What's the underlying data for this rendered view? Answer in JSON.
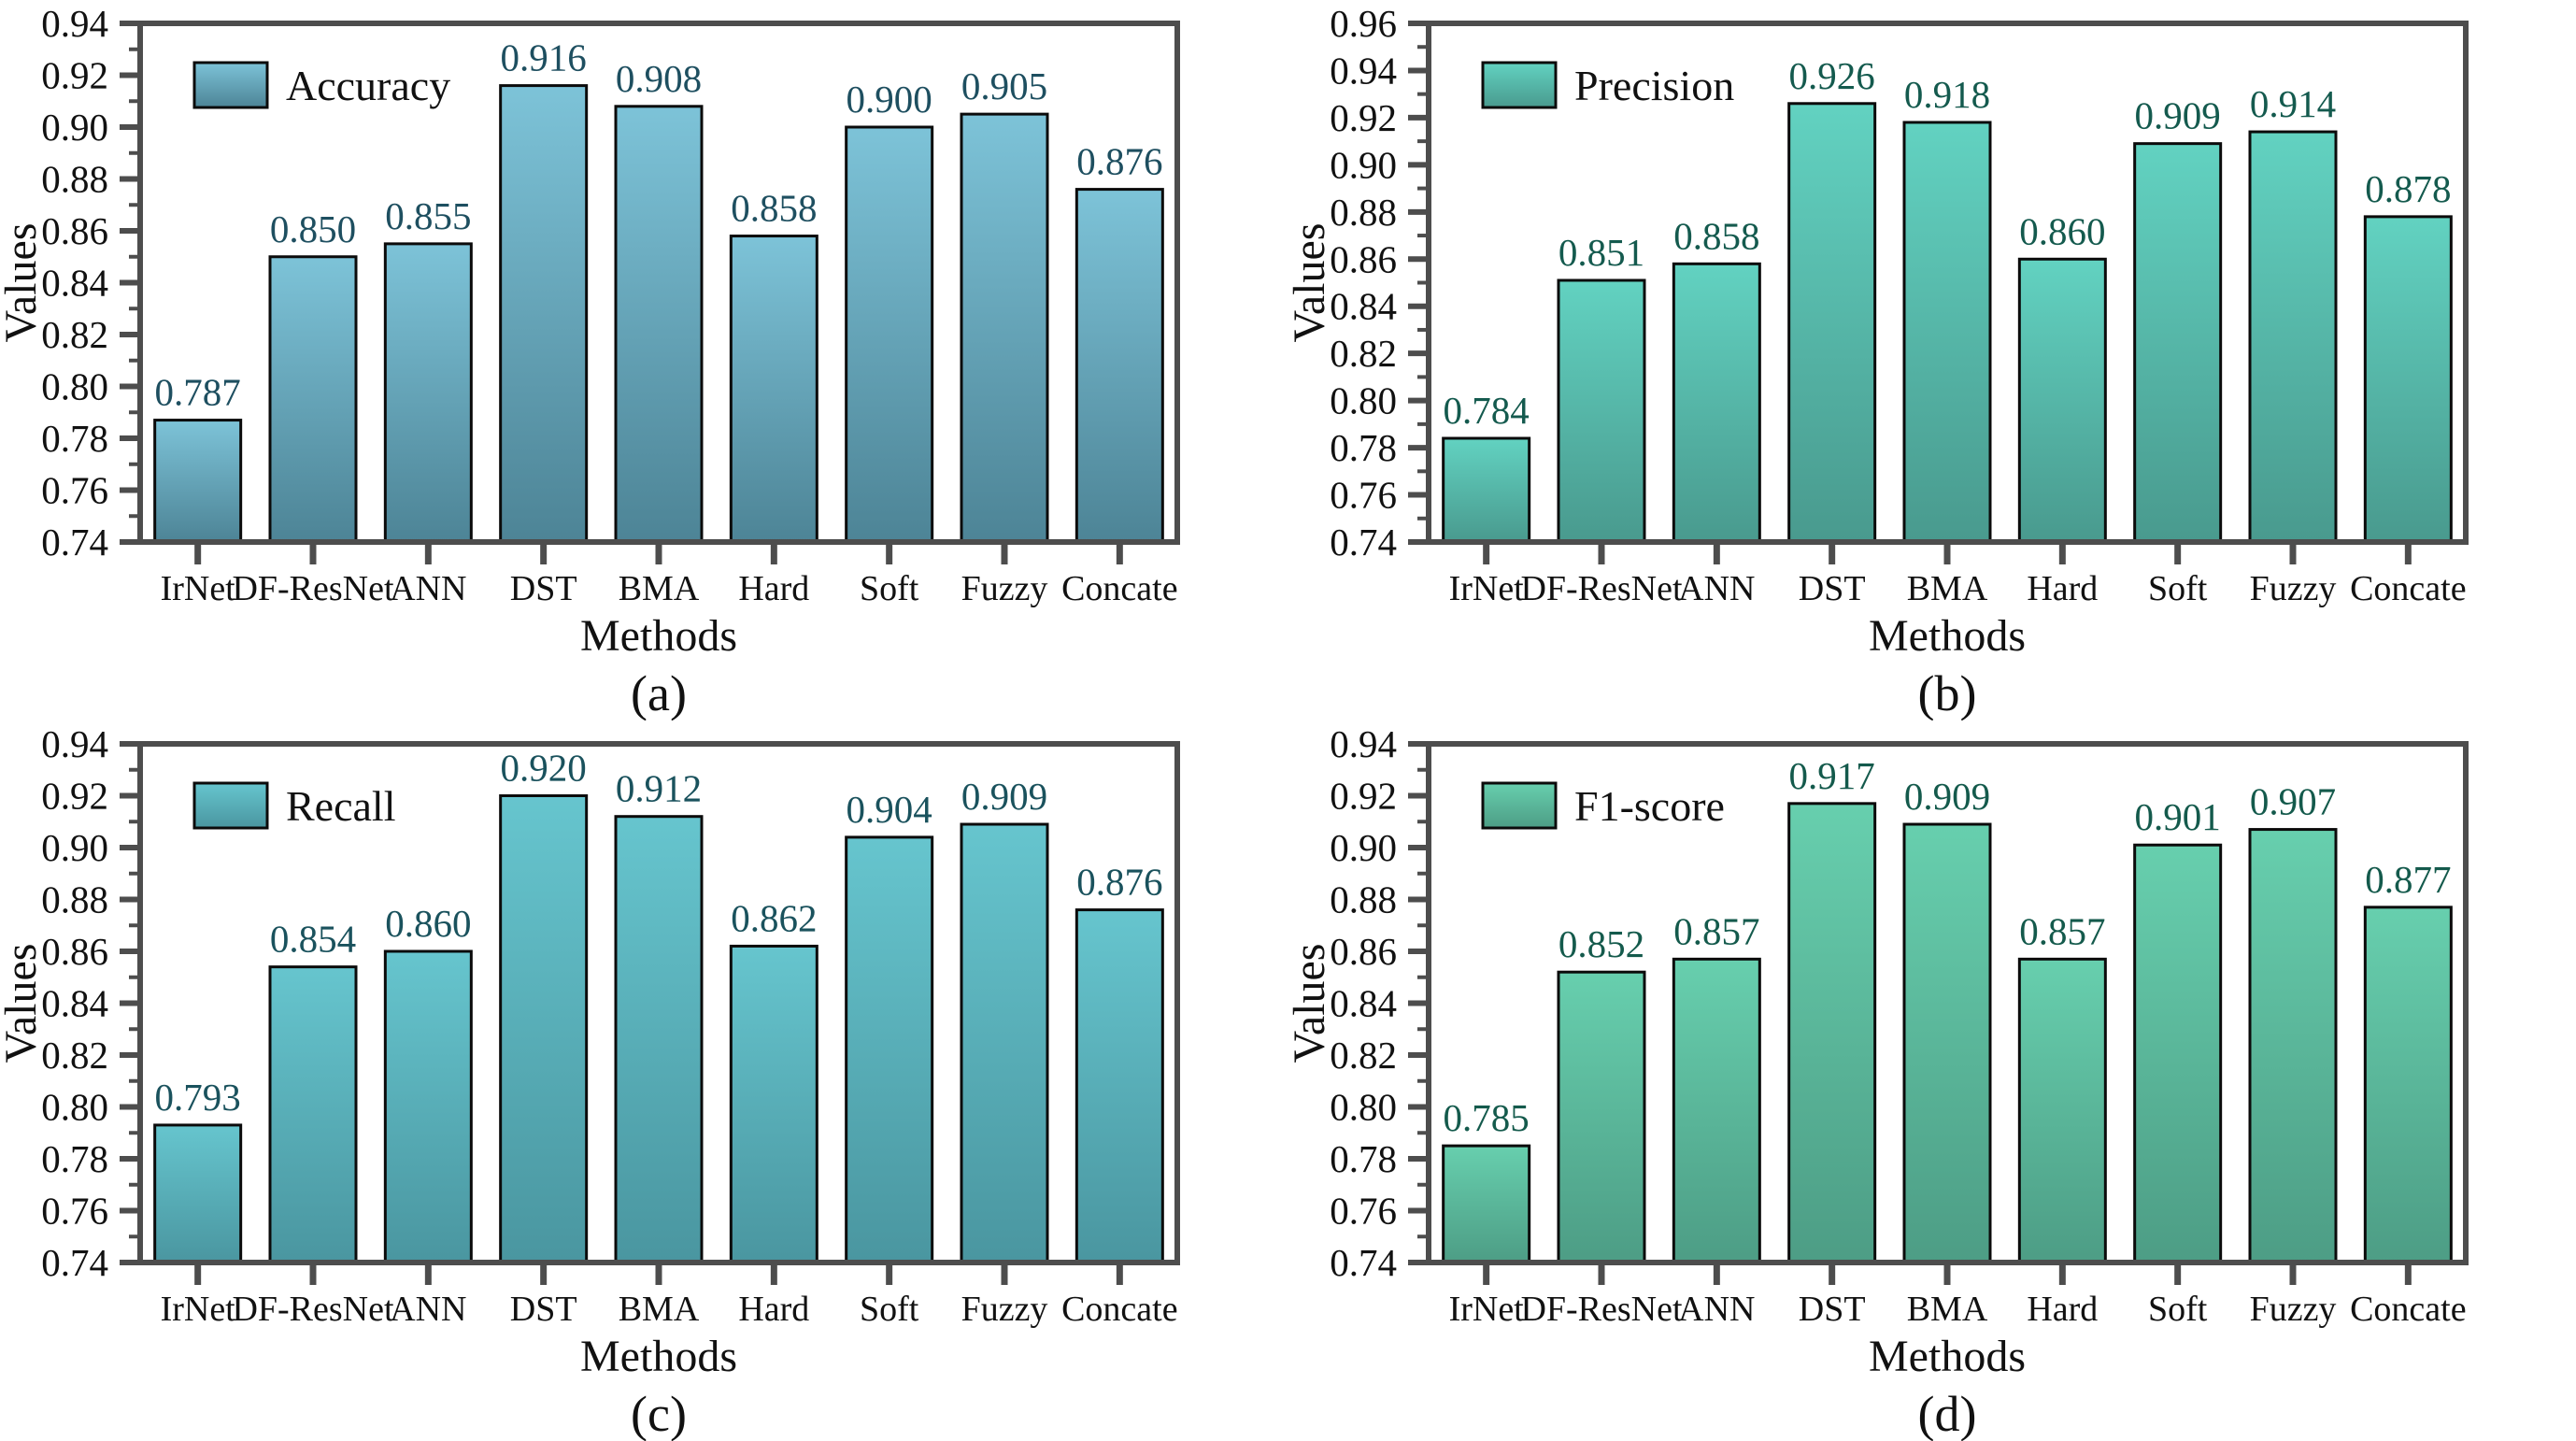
{
  "figure": {
    "background": "#ffffff",
    "axis_color": "#4d4d4d",
    "tick_label_color": "#111111",
    "xlabel": "Methods",
    "ylabel": "Values",
    "categories": [
      "IrNet",
      "DF-ResNet",
      "ANN",
      "DST",
      "BMA",
      "Hard",
      "Soft",
      "Fuzzy",
      "Concate"
    ]
  },
  "chart_data": [
    {
      "type": "bar",
      "subplot": "(a)",
      "legend": "Accuracy",
      "xlabel": "Methods",
      "ylabel": "Values",
      "categories": [
        "IrNet",
        "DF-ResNet",
        "ANN",
        "DST",
        "BMA",
        "Hard",
        "Soft",
        "Fuzzy",
        "Concate"
      ],
      "values": [
        0.787,
        0.85,
        0.855,
        0.916,
        0.908,
        0.858,
        0.9,
        0.905,
        0.876
      ],
      "value_labels": [
        "0.787",
        "0.850",
        "0.855",
        "0.916",
        "0.908",
        "0.858",
        "0.900",
        "0.905",
        "0.876"
      ],
      "ylim": [
        0.74,
        0.94
      ],
      "ytick_step": 0.02,
      "yminor_step": 0.01,
      "grid": false,
      "legend_position": "top-left",
      "colors": {
        "bar_top": "#7dc3d8",
        "bar_bottom": "#4d8496",
        "bar_outline": "#0b0b0b",
        "value_label": "#1e4f60"
      }
    },
    {
      "type": "bar",
      "subplot": "(b)",
      "legend": "Precision",
      "xlabel": "Methods",
      "ylabel": "Values",
      "categories": [
        "IrNet",
        "DF-ResNet",
        "ANN",
        "DST",
        "BMA",
        "Hard",
        "Soft",
        "Fuzzy",
        "Concate"
      ],
      "values": [
        0.784,
        0.851,
        0.858,
        0.926,
        0.918,
        0.86,
        0.909,
        0.914,
        0.878
      ],
      "value_labels": [
        "0.784",
        "0.851",
        "0.858",
        "0.926",
        "0.918",
        "0.860",
        "0.909",
        "0.914",
        "0.878"
      ],
      "ylim": [
        0.74,
        0.96
      ],
      "ytick_step": 0.02,
      "yminor_step": 0.01,
      "grid": false,
      "legend_position": "top-left",
      "colors": {
        "bar_top": "#62d2c1",
        "bar_bottom": "#499a8e",
        "bar_outline": "#0b0b0b",
        "value_label": "#145a4e"
      }
    },
    {
      "type": "bar",
      "subplot": "(c)",
      "legend": "Recall",
      "xlabel": "Methods",
      "ylabel": "Values",
      "categories": [
        "IrNet",
        "DF-ResNet",
        "ANN",
        "DST",
        "BMA",
        "Hard",
        "Soft",
        "Fuzzy",
        "Concate"
      ],
      "values": [
        0.793,
        0.854,
        0.86,
        0.92,
        0.912,
        0.862,
        0.904,
        0.909,
        0.876
      ],
      "value_labels": [
        "0.793",
        "0.854",
        "0.860",
        "0.920",
        "0.912",
        "0.862",
        "0.904",
        "0.909",
        "0.876"
      ],
      "ylim": [
        0.74,
        0.94
      ],
      "ytick_step": 0.02,
      "yminor_step": 0.01,
      "grid": false,
      "legend_position": "top-left",
      "colors": {
        "bar_top": "#66c5ce",
        "bar_bottom": "#4a96a0",
        "bar_outline": "#0b0b0b",
        "value_label": "#1a525d"
      }
    },
    {
      "type": "bar",
      "subplot": "(d)",
      "legend": "F1-score",
      "xlabel": "Methods",
      "ylabel": "Values",
      "categories": [
        "IrNet",
        "DF-ResNet",
        "ANN",
        "DST",
        "BMA",
        "Hard",
        "Soft",
        "Fuzzy",
        "Concate"
      ],
      "values": [
        0.785,
        0.852,
        0.857,
        0.917,
        0.909,
        0.857,
        0.901,
        0.907,
        0.877
      ],
      "value_labels": [
        "0.785",
        "0.852",
        "0.857",
        "0.917",
        "0.909",
        "0.857",
        "0.901",
        "0.907",
        "0.877"
      ],
      "ylim": [
        0.74,
        0.94
      ],
      "ytick_step": 0.02,
      "yminor_step": 0.01,
      "grid": false,
      "legend_position": "top-left",
      "colors": {
        "bar_top": "#67cfae",
        "bar_bottom": "#4d9d85",
        "bar_outline": "#0b0b0b",
        "value_label": "#145a4c"
      }
    }
  ]
}
